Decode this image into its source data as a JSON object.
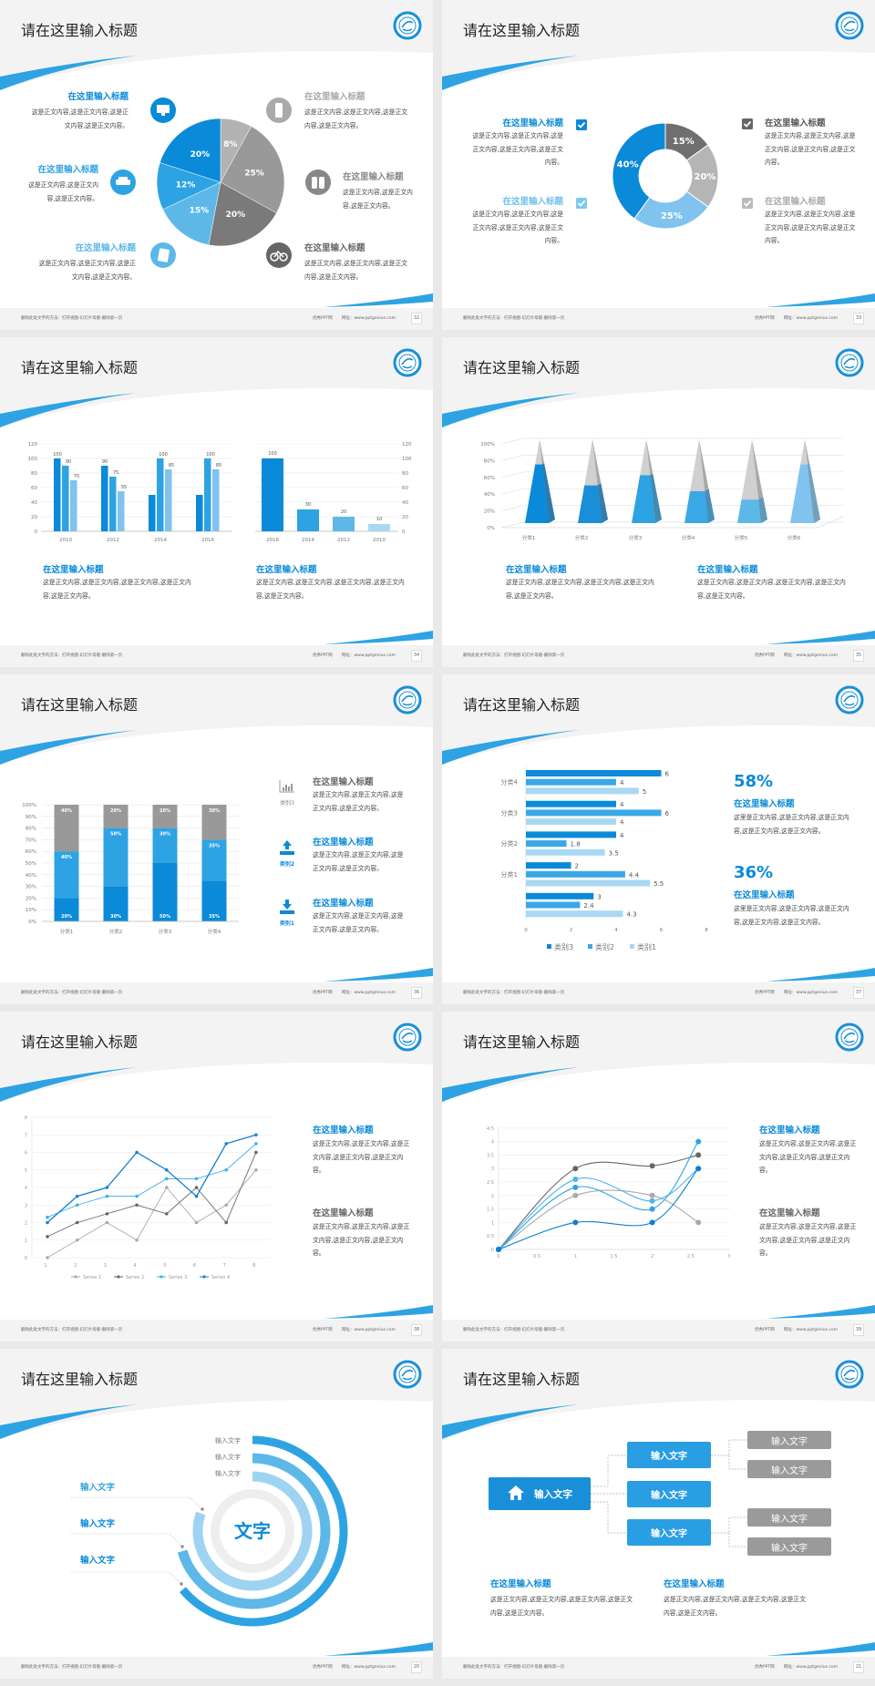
{
  "common": {
    "footer_left": "删除此处文字的方法：打开视图-幻灯片母版-删除第一页",
    "footer_site": "优秀PPT网",
    "footer_url": "网址：www.pptgenius.com"
  },
  "colors": {
    "primary": "#0a8ad8",
    "blue2": "#2ea3e3",
    "blue3": "#5db8e8",
    "blue4": "#7fc3ee",
    "blue5": "#a9d8f3",
    "gray1": "#b0b0b0",
    "gray2": "#969696",
    "gray3": "#777777",
    "background": "#f3f3f3"
  },
  "slides": [
    {
      "title": "请在这里输入标题",
      "page": "32",
      "icons": [
        "monitor-icon",
        "car-icon",
        "book-icon",
        "phone-icon",
        "binoculars-icon",
        "bicycle-icon"
      ],
      "blocks": [
        {
          "heading": "在这里输入标题",
          "body": "这是正文内容,这是正文内容,这是正文内容,这是正文内容。"
        },
        {
          "heading": "在这里输入标题",
          "body": "这是正文内容,这是正文内容,这是正文内容。"
        },
        {
          "heading": "在这里输入标题",
          "body": "这是正文内容,这是正文内容,这是正文内容,这是正文内容。"
        },
        {
          "heading": "在这里输入标题",
          "body": "这是正文内容,这是正文内容,这是正文内容,这是正文内容。"
        },
        {
          "heading": "在这里输入标题",
          "body": "这是正文内容,这是正文内容,这是正文内容。"
        },
        {
          "heading": "在这里输入标题",
          "body": "这是正文内容,这是正文内容,这是正文内容,这是正文内容。"
        }
      ]
    },
    {
      "title": "请在这里输入标题",
      "page": "33",
      "blocks": [
        {
          "heading": "在这里输入标题",
          "body": "这是正文内容,这是正文内容,这是正文内容,这是正文内容,这是正文内容。"
        },
        {
          "heading": "在这里输入标题",
          "body": "这是正文内容,这是正文内容,这是正文内容,这是正文内容,这是正文内容。"
        },
        {
          "heading": "在这里输入标题",
          "body": "这是正文内容,这是正文内容,这是正文内容,这是正文内容,这是正文内容。"
        },
        {
          "heading": "在这里输入标题",
          "body": "这是正文内容,这是正文内容,这是正文内容,这是正文内容,这是正文内容。"
        }
      ]
    },
    {
      "title": "请在这里输入标题",
      "page": "34",
      "blocks": [
        {
          "heading": "在这里输入标题",
          "body": "这是正文内容,这是正文内容,这是正文内容,这是正文内容,这是正文内容。"
        },
        {
          "heading": "在这里输入标题",
          "body": "这是正文内容,这是正文内容,这是正文内容,这是正文内容,这是正文内容。"
        }
      ]
    },
    {
      "title": "请在这里输入标题",
      "page": "35",
      "blocks": [
        {
          "heading": "在这里输入标题",
          "body": "这是正文内容,这是正文内容,这是正文内容,这是正文内容,这是正文内容。"
        },
        {
          "heading": "在这里输入标题",
          "body": "这是正文内容,这是正文内容,这是正文内容,这是正文内容,这是正文内容。"
        }
      ]
    },
    {
      "title": "请在这里输入标题",
      "page": "36",
      "side_labels": [
        "类别3",
        "类别2",
        "类别1"
      ],
      "blocks": [
        {
          "heading": "在这里输入标题",
          "body": "这是正文内容,这是正文内容,这是正文内容,这是正文内容。"
        },
        {
          "heading": "在这里输入标题",
          "body": "这是正文内容,这是正文内容,这是正文内容,这是正文内容。"
        },
        {
          "heading": "在这里输入标题",
          "body": "这是正文内容,这是正文内容,这是正文内容,这是正文内容。"
        }
      ]
    },
    {
      "title": "请在这里输入标题",
      "page": "37",
      "stats": [
        "58%",
        "36%"
      ],
      "blocks": [
        {
          "heading": "在这里输入标题",
          "body": "这里是正文内容,这是正文内容,这是正文内容,这是正文内容,这是正文内容。"
        },
        {
          "heading": "在这里输入标题",
          "body": "这里是正文内容,这是正文内容,这是正文内容,这是正文内容,这是正文内容。"
        }
      ]
    },
    {
      "title": "请在这里输入标题",
      "page": "38",
      "blocks": [
        {
          "heading": "在这里输入标题",
          "body": "这是正文内容,这是正文内容,这是正文内容,这是正文内容,这是正文内容。"
        },
        {
          "heading": "在这里输入标题",
          "body": "这是正文内容,这是正文内容,这是正文内容,这是正文内容,这是正文内容。"
        }
      ]
    },
    {
      "title": "请在这里输入标题",
      "page": "39",
      "blocks": [
        {
          "heading": "在这里输入标题",
          "body": "这是正文内容,这是正文内容,这是正文内容,这是正文内容,这是正文内容。"
        },
        {
          "heading": "在这里输入标题",
          "body": "这是正文内容,这是正文内容,这是正文内容,这是正文内容,这是正文内容。"
        }
      ]
    },
    {
      "title": "请在这里输入标题",
      "page": "20",
      "center": "文字",
      "top_labels": [
        "输入文字",
        "输入文字",
        "输入文字"
      ],
      "side_labels": [
        "输入文字",
        "输入文字",
        "输入文字"
      ]
    },
    {
      "title": "请在这里输入标题",
      "page": "21",
      "root": "输入文字",
      "mids": [
        "输入文字",
        "输入文字",
        "输入文字"
      ],
      "leaves": [
        "输入文字",
        "输入文字",
        "输入文字",
        "输入文字"
      ],
      "blocks": [
        {
          "heading": "在这里输入标题",
          "body": "这是正文内容,这是正文内容,这是正文内容,这是正文内容,这是正文内容。"
        },
        {
          "heading": "在这里输入标题",
          "body": "这是正文内容,这是正文内容,这是正文内容,这是正文内容,这是正文内容。"
        }
      ]
    }
  ],
  "chart_data": [
    {
      "type": "pie",
      "values": [
        8,
        25,
        20,
        15,
        12,
        20
      ],
      "labels": [
        "8%",
        "25%",
        "20%",
        "15%",
        "12%",
        "20%"
      ],
      "colors": [
        "#b3b3b3",
        "#999999",
        "#7a7a7a",
        "#5db8e8",
        "#2ea3e3",
        "#0a8ad8"
      ]
    },
    {
      "type": "pie",
      "donut": true,
      "values": [
        15,
        20,
        25,
        40
      ],
      "labels": [
        "15%",
        "20%",
        "25%",
        "40%"
      ],
      "colors": [
        "#6f6f6f",
        "#b5b5b5",
        "#7fc3ee",
        "#0a8ad8"
      ]
    },
    {
      "type": "bar",
      "categories": [
        "2010",
        "2012",
        "2014",
        "2016"
      ],
      "ylim": [
        0,
        120
      ],
      "yticks": [
        "0",
        "20",
        "40",
        "60",
        "80",
        "100",
        "120"
      ],
      "series": [
        {
          "values": [
            100,
            90,
            50,
            50
          ],
          "labels": [
            "100",
            "90",
            "",
            ""
          ],
          "color": "#0a8ad8"
        },
        {
          "values": [
            90,
            75,
            100,
            100
          ],
          "labels": [
            "90",
            "75",
            "100",
            "100"
          ],
          "color": "#2ea3e3"
        },
        {
          "values": [
            70,
            55,
            85,
            85
          ],
          "labels": [
            "70",
            "55",
            "85",
            "85"
          ],
          "color": "#7fc3ee"
        }
      ]
    },
    {
      "type": "bar",
      "categories": [
        "2016",
        "2014",
        "2012",
        "2010"
      ],
      "ylim": [
        0,
        120
      ],
      "axis": "right",
      "yticks": [
        "0",
        "20",
        "40",
        "60",
        "80",
        "100",
        "120"
      ],
      "values": [
        100,
        30,
        20,
        10
      ],
      "labels": [
        "100",
        "30",
        "20",
        "10"
      ],
      "colors": [
        "#0a8ad8",
        "#2ea3e3",
        "#5db8e8",
        "#a9d8f3"
      ]
    },
    {
      "type": "bar",
      "shape": "pyramid-3d",
      "categories": [
        "分类1",
        "分类2",
        "分类3",
        "分类4",
        "分类5",
        "分类6"
      ],
      "values": [
        70,
        45,
        57,
        38,
        28,
        70
      ],
      "ylim": [
        0,
        100
      ],
      "yticks": [
        "0%",
        "20%",
        "40%",
        "60%",
        "80%",
        "100%"
      ],
      "colors": [
        "#0a8ad8",
        "#1a8fd9",
        "#2ea3e3",
        "#3aa8e6",
        "#5db8e8",
        "#7fc3ee"
      ]
    },
    {
      "type": "bar",
      "stacked": true,
      "categories": [
        "分类1",
        "分类2",
        "分类3",
        "分类4"
      ],
      "ylim": [
        0,
        100
      ],
      "yticks": [
        "0%",
        "10%",
        "20%",
        "30%",
        "40%",
        "50%",
        "60%",
        "70%",
        "80%",
        "90%",
        "100%"
      ],
      "series": [
        {
          "name": "类别1",
          "values": [
            20,
            30,
            50,
            35
          ],
          "labels": [
            "20%",
            "30%",
            "50%",
            "35%"
          ],
          "color": "#0a8ad8"
        },
        {
          "name": "类别2",
          "values": [
            40,
            50,
            30,
            35
          ],
          "labels": [
            "40%",
            "50%",
            "30%",
            "35%"
          ],
          "color": "#2ea3e3"
        },
        {
          "name": "类别3",
          "values": [
            40,
            20,
            20,
            30
          ],
          "labels": [
            "40%",
            "20%",
            "20%",
            "30%"
          ],
          "color": "#999999"
        }
      ]
    },
    {
      "type": "bar",
      "orientation": "horizontal",
      "categories": [
        "分类4",
        "分类3",
        "分类2",
        "分类1",
        ""
      ],
      "xlim": [
        0,
        8
      ],
      "xticks": [
        "0",
        "2",
        "4",
        "6",
        "8"
      ],
      "legend": "bottom",
      "series": [
        {
          "name": "类别3",
          "values": [
            6,
            4,
            4,
            2,
            3
          ],
          "labels": [
            "6",
            "4",
            "4",
            "2",
            "3"
          ],
          "color": "#0a8ad8"
        },
        {
          "name": "类别2",
          "values": [
            4,
            6,
            1.8,
            4.4,
            2.4
          ],
          "labels": [
            "4",
            "6",
            "1.8",
            "4.4",
            "2.4"
          ],
          "color": "#3aa8e6"
        },
        {
          "name": "类别1",
          "values": [
            5,
            4,
            3.5,
            5.5,
            4.3
          ],
          "labels": [
            "5",
            "4",
            "3.5",
            "5.5",
            "4.3"
          ],
          "color": "#a9d8f3"
        }
      ]
    },
    {
      "type": "line",
      "x": [
        1,
        2,
        3,
        4,
        5,
        6,
        7,
        8
      ],
      "ylim": [
        0,
        8
      ],
      "legend": "bottom",
      "grid": true,
      "xticks": [
        "1",
        "2",
        "3",
        "4",
        "5",
        "6",
        "7",
        "8"
      ],
      "yticks": [
        "0",
        "1",
        "2",
        "3",
        "4",
        "5",
        "6",
        "7",
        "8"
      ],
      "series": [
        {
          "name": "Series 1",
          "values": [
            0,
            1,
            2,
            1,
            4,
            2,
            3,
            5
          ],
          "color": "#aaaaaa"
        },
        {
          "name": "Series 2",
          "values": [
            1.2,
            2,
            2.5,
            3,
            2.5,
            4,
            2,
            6
          ],
          "color": "#666666"
        },
        {
          "name": "Series 3",
          "values": [
            2.3,
            3,
            3.5,
            3.5,
            4.5,
            4.5,
            5,
            6.5
          ],
          "color": "#3fb0e8"
        },
        {
          "name": "Series 4",
          "values": [
            2,
            3.5,
            4,
            6,
            5,
            3.5,
            6.5,
            7
          ],
          "color": "#1a7fcf"
        }
      ]
    },
    {
      "type": "line",
      "smooth": true,
      "x": [
        0,
        1,
        2,
        2.6
      ],
      "xlim": [
        0,
        3
      ],
      "ylim": [
        0,
        4.5
      ],
      "grid": true,
      "xticks": [
        "0",
        "0.5",
        "1",
        "1.5",
        "2",
        "2.5",
        "3"
      ],
      "yticks": [
        "0",
        "0.5",
        "1",
        "1.5",
        "2",
        "2.5",
        "3",
        "3.5",
        "4",
        "4.5"
      ],
      "series": [
        {
          "values": [
            0,
            3,
            3.1,
            3.5
          ],
          "color": "#666666"
        },
        {
          "values": [
            0,
            2,
            2,
            1
          ],
          "color": "#aaaaaa"
        },
        {
          "values": [
            0,
            2.6,
            1.8,
            3
          ],
          "color": "#4cb5ea"
        },
        {
          "values": [
            0,
            2.3,
            1.5,
            4
          ],
          "color": "#2ea3e3"
        },
        {
          "values": [
            0,
            1,
            1,
            3
          ],
          "color": "#0a7fd0"
        }
      ]
    }
  ]
}
